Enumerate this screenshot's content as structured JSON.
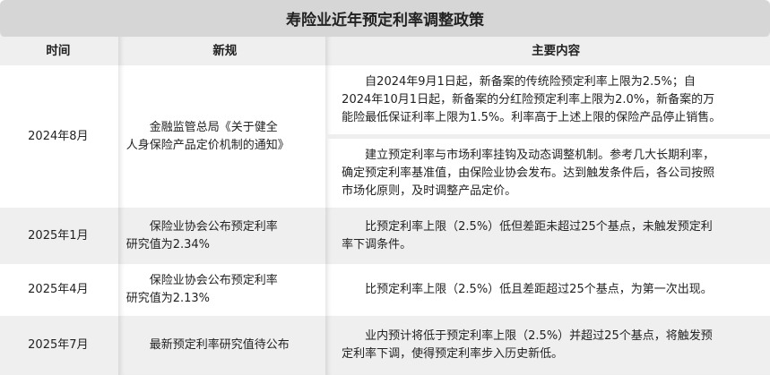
{
  "title": "寿险业近年预定利率调整政策",
  "headers": [
    "时间",
    "新规",
    "主要内容"
  ],
  "rows": [
    {
      "time": "2024年8月",
      "regulation": [
        "金融监管总局《关于健全",
        "人身保险产品定价机制的通知》"
      ],
      "content": [
        [
          "自2024年9月1日起，新备案的传统险预定利率上限为2.5%；自",
          "2024年10月1日起，新备案的分红险预定利率上限为2.0%，新备案的万",
          "能险最低保证利率上限为1.5%。利率高于上述上限的保险产品停止销售。"
        ],
        [
          "建立预定利率与市场利率挂钩及动态调整机制。参考几大长期利率，",
          "确定预定利率基准值，由保险业协会发布。达到触发条件后，各公司按照",
          "市场化原则，及时调整产品定价。"
        ]
      ]
    },
    {
      "time": "2025年1月",
      "regulation": [
        "保险业协会公布预定利率",
        "研究值为2.34%"
      ],
      "content": [
        [
          "比预定利率上限（2.5%）低但差距未超过25个基点，未触发预定利",
          "率下调条件。"
        ]
      ]
    },
    {
      "time": "2025年4月",
      "regulation": [
        "保险业协会公布预定利率",
        "研究值为2.13%"
      ],
      "content": [
        [
          "比预定利率上限（2.5%）低且差距超过25个基点，为第一次出现。"
        ]
      ]
    },
    {
      "time": "2025年7月",
      "regulation": [
        "最新预定利率研究值待公布"
      ],
      "content": [
        [
          "业内预计将低于预定利率上限（2.5%）并超过25个基点，将触发预",
          "定利率下调，使得预定利率步入历史新低。"
        ]
      ]
    }
  ]
}
